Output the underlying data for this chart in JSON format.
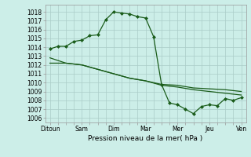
{
  "title": "Pression niveau de la mer( hPa )",
  "x_labels": [
    "Ditoun",
    "Sam",
    "Dim",
    "Mar",
    "Mer",
    "Jeu",
    "Ven"
  ],
  "ylim": [
    1005.5,
    1018.8
  ],
  "yticks": [
    1006,
    1007,
    1008,
    1009,
    1010,
    1011,
    1012,
    1013,
    1014,
    1015,
    1016,
    1017,
    1018
  ],
  "bg_color": "#cceee8",
  "grid_color": "#aaccc8",
  "line_color": "#1a5c1a",
  "line1_x": [
    0,
    0.5,
    1.0,
    1.5,
    2.0,
    2.5,
    3.0,
    3.5,
    4.0,
    4.5,
    5.0,
    5.5,
    6.0,
    6.5,
    7.0,
    7.5,
    8.0,
    8.5,
    9.0,
    9.5,
    10.0,
    10.5,
    11.0,
    11.5,
    12.0
  ],
  "line1_y": [
    1013.8,
    1014.1,
    1014.1,
    1014.65,
    1014.8,
    1015.3,
    1015.4,
    1017.1,
    1018.0,
    1017.85,
    1017.75,
    1017.45,
    1017.3,
    1015.2,
    1009.8,
    1007.7,
    1007.5,
    1007.0,
    1006.5,
    1007.3,
    1007.5,
    1007.4,
    1008.2,
    1008.0,
    1008.3
  ],
  "line2_x": [
    0,
    1,
    2,
    3,
    4,
    5,
    6,
    7,
    8,
    9,
    10,
    11,
    12
  ],
  "line2_y": [
    1012.8,
    1012.2,
    1012.0,
    1011.5,
    1011.0,
    1010.5,
    1010.2,
    1009.8,
    1009.7,
    1009.4,
    1009.3,
    1009.2,
    1009.0
  ],
  "line3_x": [
    0,
    1,
    2,
    3,
    4,
    5,
    6,
    7,
    8,
    9,
    10,
    11,
    12
  ],
  "line3_y": [
    1012.2,
    1012.2,
    1012.0,
    1011.5,
    1011.0,
    1010.5,
    1010.2,
    1009.7,
    1009.5,
    1009.2,
    1009.0,
    1008.8,
    1008.6
  ],
  "marker_style": "D",
  "marker_size": 2.0,
  "linewidth": 0.9,
  "tick_labelsize": 5.5,
  "xlabel_fontsize": 6.5
}
